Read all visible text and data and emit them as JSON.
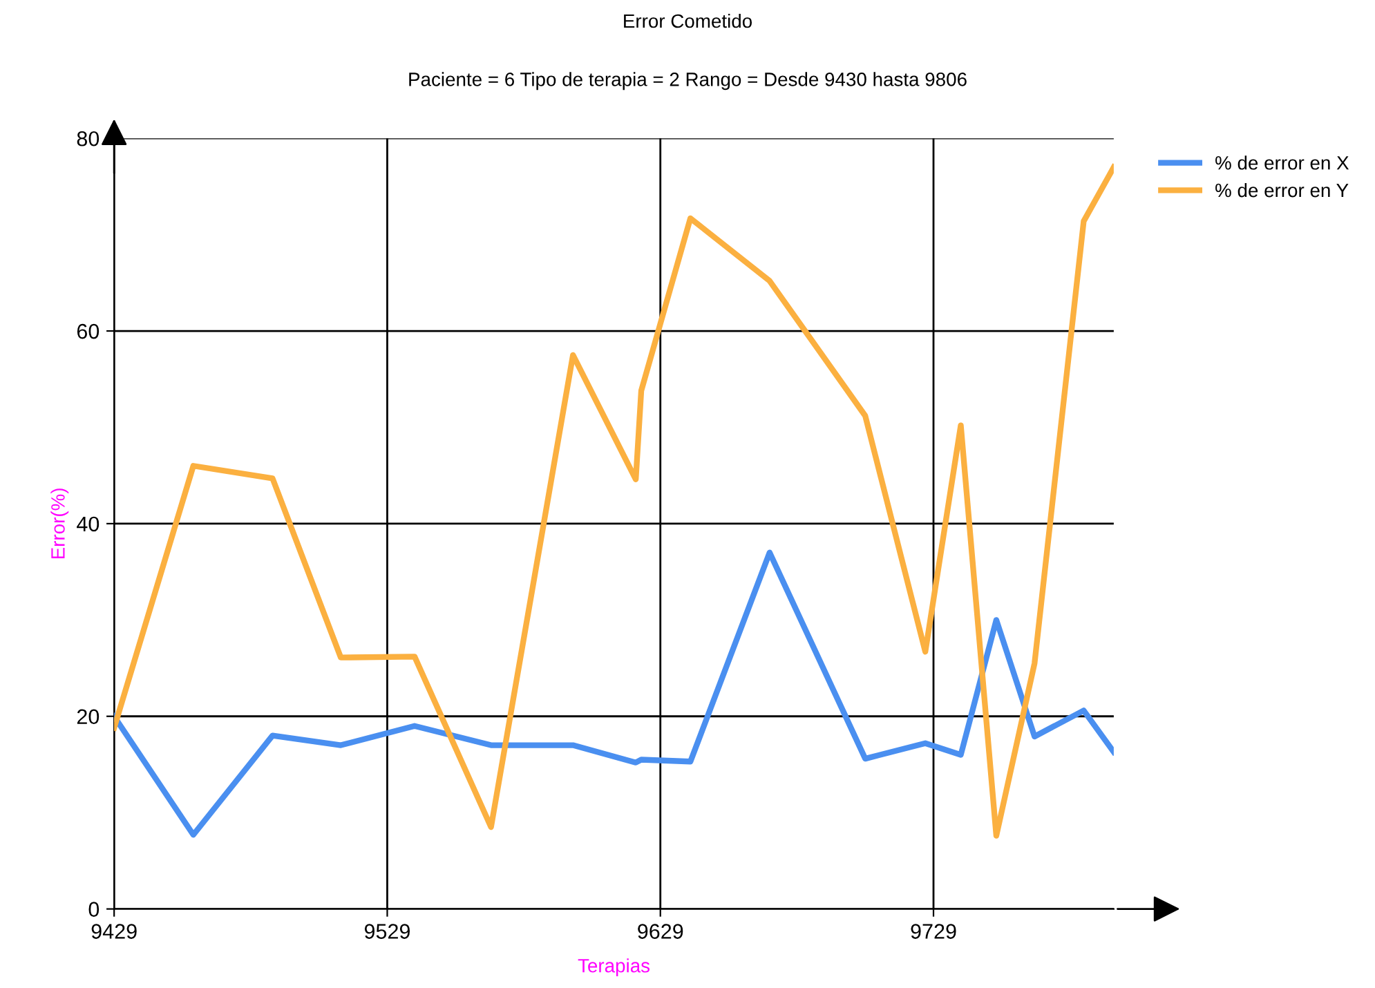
{
  "chart_data": {
    "type": "line",
    "title": "Error Cometido",
    "subtitle": "Paciente = 6 Tipo de terapia = 2 Rango = Desde 9430 hasta 9806",
    "xlabel": "Terapias",
    "ylabel": "Error(%)",
    "x": [
      9429,
      9458,
      9487,
      9512,
      9539,
      9567,
      9597,
      9620,
      9622,
      9640,
      9669,
      9704,
      9726,
      9739,
      9752,
      9766,
      9784,
      9795
    ],
    "series": [
      {
        "name": "% de error en X",
        "color": "#4a8ff0",
        "values": [
          20,
          7.7,
          18,
          17,
          19,
          17,
          17,
          15.2,
          15.5,
          15.3,
          37,
          15.6,
          17.2,
          16,
          30,
          17.9,
          20.6,
          16.3
        ]
      },
      {
        "name": "% de error en Y",
        "color": "#fbb040",
        "values": [
          18.8,
          46,
          44.7,
          26.1,
          26.2,
          8.5,
          57.5,
          44.6,
          53.8,
          71.7,
          65.2,
          51.2,
          26.7,
          50.2,
          7.6,
          25.5,
          71.4,
          77
        ]
      }
    ],
    "xlim": [
      9429,
      9795
    ],
    "xticks": [
      9429,
      9529,
      9629,
      9729
    ],
    "ylim": [
      0,
      80
    ],
    "yticks": [
      0,
      20,
      40,
      60,
      80
    ],
    "grid": true,
    "legend": "top right",
    "marker": "none",
    "line_style": "solid"
  }
}
